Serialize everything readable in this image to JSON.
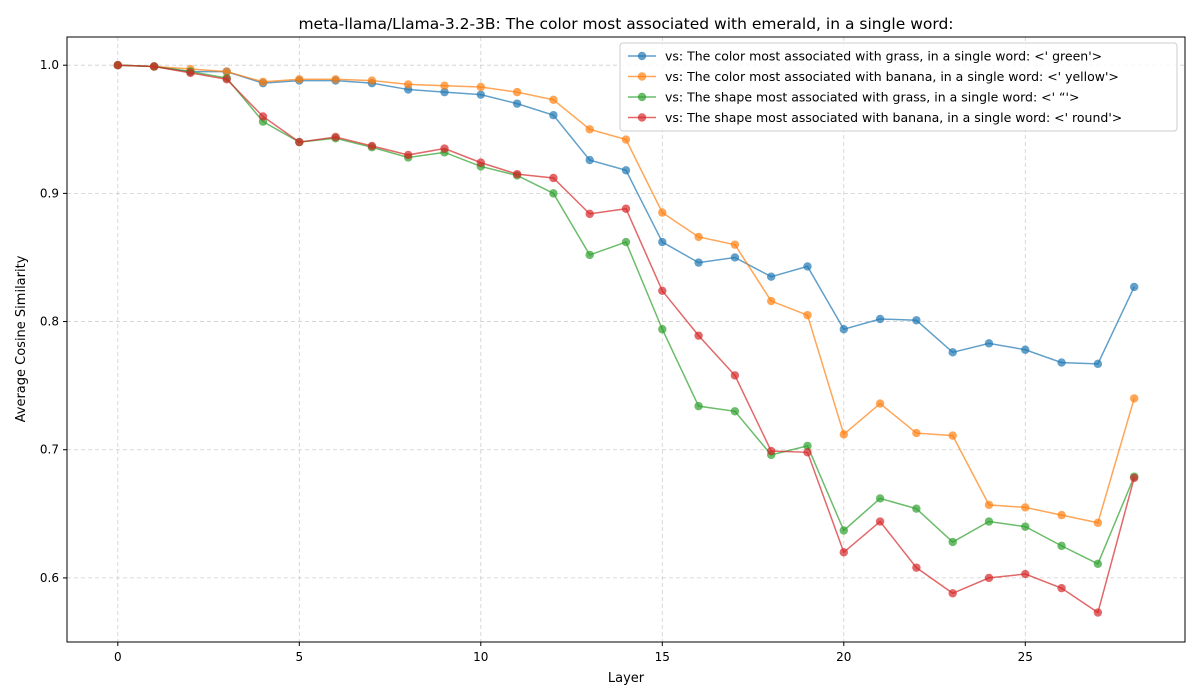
{
  "chart_data": {
    "type": "line",
    "title": "meta-llama/Llama-3.2-3B: The color most associated with emerald, in a single word:",
    "xlabel": "Layer",
    "ylabel": "Average Cosine Similarity",
    "xlim": [
      -1.4,
      29.4
    ],
    "ylim": [
      0.55,
      1.022
    ],
    "xticks": [
      0,
      5,
      10,
      15,
      20,
      25
    ],
    "xtick_labels": [
      "0",
      "5",
      "10",
      "15",
      "20",
      "25"
    ],
    "yticks": [
      0.6,
      0.7,
      0.8,
      0.9,
      1.0
    ],
    "ytick_labels": [
      "0.6",
      "0.7",
      "0.8",
      "0.9",
      "1.0"
    ],
    "grid": true,
    "legend_position": "top-right",
    "x": [
      0,
      1,
      2,
      3,
      4,
      5,
      6,
      7,
      8,
      9,
      10,
      11,
      12,
      13,
      14,
      15,
      16,
      17,
      18,
      19,
      20,
      21,
      22,
      23,
      24,
      25,
      26,
      27,
      28
    ],
    "series": [
      {
        "name": "vs: The color most associated with grass, in a single word: <' green'>",
        "color": "#1f77b4",
        "values": [
          1.0,
          0.999,
          0.995,
          0.995,
          0.986,
          0.988,
          0.988,
          0.986,
          0.981,
          0.979,
          0.977,
          0.97,
          0.961,
          0.926,
          0.918,
          0.862,
          0.846,
          0.85,
          0.835,
          0.843,
          0.794,
          0.802,
          0.801,
          0.776,
          0.783,
          0.778,
          0.768,
          0.767,
          0.827
        ]
      },
      {
        "name": "vs: The color most associated with banana, in a single word: <' yellow'>",
        "color": "#ff7f0e",
        "values": [
          1.0,
          0.999,
          0.997,
          0.995,
          0.987,
          0.989,
          0.989,
          0.988,
          0.985,
          0.984,
          0.983,
          0.979,
          0.973,
          0.95,
          0.942,
          0.885,
          0.866,
          0.86,
          0.816,
          0.805,
          0.712,
          0.736,
          0.713,
          0.711,
          0.657,
          0.655,
          0.649,
          0.643,
          0.74
        ]
      },
      {
        "name": "vs: The shape most associated with grass, in a single word: <' “'>",
        "color": "#2ca02c",
        "values": [
          1.0,
          0.999,
          0.995,
          0.99,
          0.956,
          0.94,
          0.943,
          0.936,
          0.928,
          0.932,
          0.921,
          0.914,
          0.9,
          0.852,
          0.862,
          0.794,
          0.734,
          0.73,
          0.696,
          0.703,
          0.637,
          0.662,
          0.654,
          0.628,
          0.644,
          0.64,
          0.625,
          0.611,
          0.679
        ]
      },
      {
        "name": "vs: The shape most associated with banana, in a single word: <' round'>",
        "color": "#d62728",
        "values": [
          1.0,
          0.999,
          0.994,
          0.989,
          0.96,
          0.94,
          0.944,
          0.937,
          0.93,
          0.935,
          0.924,
          0.915,
          0.912,
          0.884,
          0.888,
          0.824,
          0.789,
          0.758,
          0.699,
          0.698,
          0.62,
          0.644,
          0.608,
          0.588,
          0.6,
          0.603,
          0.592,
          0.573,
          0.678
        ]
      }
    ]
  }
}
